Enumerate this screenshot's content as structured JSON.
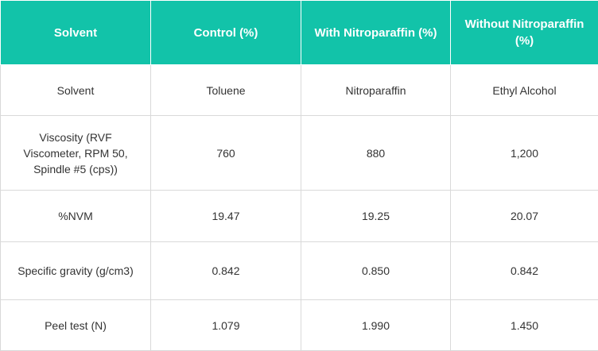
{
  "table": {
    "headers": [
      "Solvent",
      "Control (%)",
      "With Nitroparaffin (%)",
      "Without Nitroparaffin (%)"
    ],
    "rows": [
      [
        "Solvent",
        "Toluene",
        "Nitroparaffin",
        "Ethyl Alcohol"
      ],
      [
        "Viscosity (RVF Viscometer, RPM 50, Spindle #5 (cps))",
        "760",
        "880",
        "1,200"
      ],
      [
        "%NVM",
        "19.47",
        "19.25",
        "20.07"
      ],
      [
        "Specific gravity (g/cm3)",
        "0.842",
        "0.850",
        "0.842"
      ],
      [
        "Peel test (N)",
        "1.079",
        "1.990",
        "1.450"
      ]
    ]
  },
  "colors": {
    "header_background": "#12c3a9",
    "header_text": "#ffffff",
    "body_text": "#333333",
    "grid_lines": "#d9d9d9"
  }
}
